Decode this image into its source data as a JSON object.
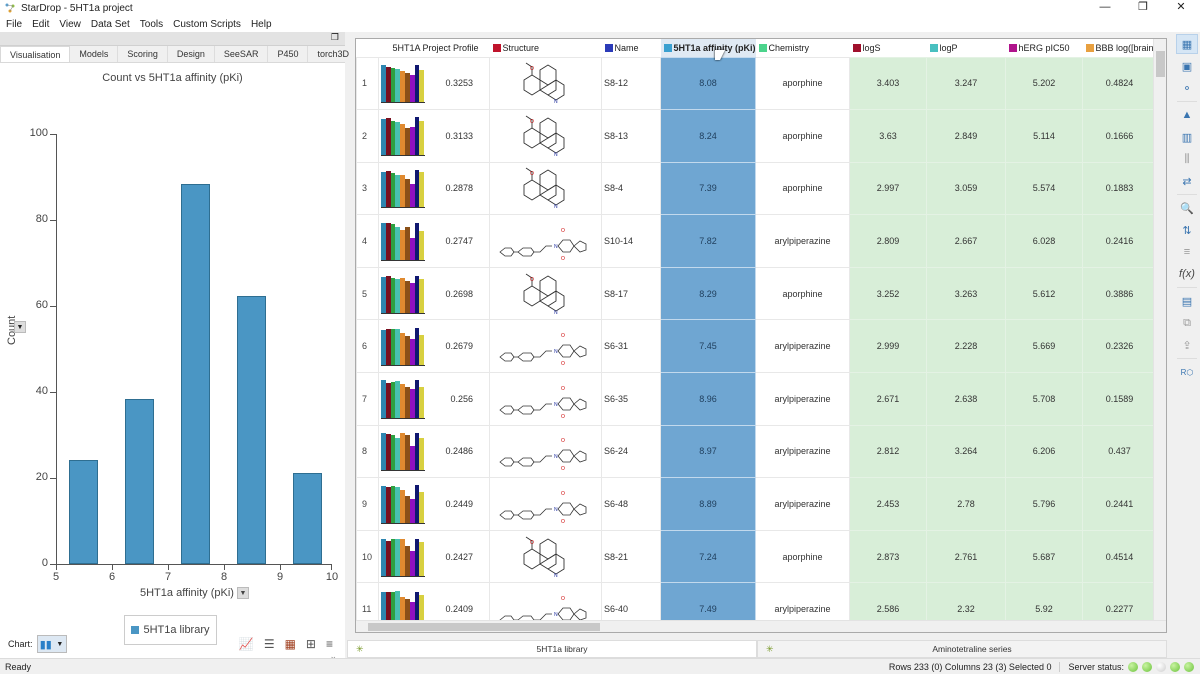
{
  "window": {
    "title": "StarDrop - 5HT1a project",
    "controls": [
      "—",
      "❐",
      "✕"
    ]
  },
  "menu": [
    "File",
    "Edit",
    "View",
    "Data Set",
    "Tools",
    "Custom Scripts",
    "Help"
  ],
  "left_panel": {
    "tabs": [
      "Visualisation",
      "Models",
      "Scoring",
      "Design",
      "SeeSAR",
      "P450",
      "torch3D"
    ],
    "active_tab": "Visualisation",
    "chart_type_label": "Chart:",
    "legend_label": "5HT1a library"
  },
  "chart_data": {
    "type": "bar",
    "title": "Count vs 5HT1a affinity (pKi)",
    "xlabel": "5HT1a affinity (pKi)",
    "ylabel": "Count",
    "categories": [
      "5-6",
      "6-7",
      "7-8",
      "8-9",
      "9-10"
    ],
    "bin_centers": [
      5.5,
      6.5,
      7.5,
      8.5,
      9.5
    ],
    "values": [
      24,
      38,
      88,
      62,
      21
    ],
    "xlim": [
      5,
      10
    ],
    "ylim": [
      0,
      100
    ],
    "xticks": [
      "5",
      "6",
      "7",
      "8",
      "9",
      "10"
    ],
    "yticks": [
      "0",
      "20",
      "40",
      "60",
      "80",
      "100"
    ],
    "legend": [
      "5HT1a library"
    ],
    "bar_color": "#4a96c4",
    "grid": false
  },
  "table": {
    "columns": [
      {
        "label": "5HT1A Project Profile",
        "color": null
      },
      {
        "label": "Structure",
        "color": "#c0142c"
      },
      {
        "label": "Name",
        "color": "#2b3bb8"
      },
      {
        "label": "5HT1a affinity (pKi)",
        "color": "#3aa0d0"
      },
      {
        "label": "Chemistry",
        "color": "#4cd48c"
      },
      {
        "label": "logS",
        "color": "#a0102c"
      },
      {
        "label": "logP",
        "color": "#48c0c0"
      },
      {
        "label": "hERG pIC50",
        "color": "#b0148c"
      },
      {
        "label": "BBB log([brain]",
        "color": "#e8a040"
      }
    ],
    "rows": [
      {
        "n": "1",
        "score": "0.3253",
        "name": "S8-12",
        "aff": "8.08",
        "chem": "aporphine",
        "logS": "3.403",
        "logP": "3.247",
        "herg": "5.202",
        "bbb": "0.4824"
      },
      {
        "n": "2",
        "score": "0.3133",
        "name": "S8-13",
        "aff": "8.24",
        "chem": "aporphine",
        "logS": "3.63",
        "logP": "2.849",
        "herg": "5.114",
        "bbb": "0.1666"
      },
      {
        "n": "3",
        "score": "0.2878",
        "name": "S8-4",
        "aff": "7.39",
        "chem": "aporphine",
        "logS": "2.997",
        "logP": "3.059",
        "herg": "5.574",
        "bbb": "0.1883"
      },
      {
        "n": "4",
        "score": "0.2747",
        "name": "S10-14",
        "aff": "7.82",
        "chem": "arylpiperazine",
        "logS": "2.809",
        "logP": "2.667",
        "herg": "6.028",
        "bbb": "0.2416"
      },
      {
        "n": "5",
        "score": "0.2698",
        "name": "S8-17",
        "aff": "8.29",
        "chem": "aporphine",
        "logS": "3.252",
        "logP": "3.263",
        "herg": "5.612",
        "bbb": "0.3886"
      },
      {
        "n": "6",
        "score": "0.2679",
        "name": "S6-31",
        "aff": "7.45",
        "chem": "arylpiperazine",
        "logS": "2.999",
        "logP": "2.228",
        "herg": "5.669",
        "bbb": "0.2326"
      },
      {
        "n": "7",
        "score": "0.256",
        "name": "S6-35",
        "aff": "8.96",
        "chem": "arylpiperazine",
        "logS": "2.671",
        "logP": "2.638",
        "herg": "5.708",
        "bbb": "0.1589"
      },
      {
        "n": "8",
        "score": "0.2486",
        "name": "S6-24",
        "aff": "8.97",
        "chem": "arylpiperazine",
        "logS": "2.812",
        "logP": "3.264",
        "herg": "6.206",
        "bbb": "0.437"
      },
      {
        "n": "9",
        "score": "0.2449",
        "name": "S6-48",
        "aff": "8.89",
        "chem": "arylpiperazine",
        "logS": "2.453",
        "logP": "2.78",
        "herg": "5.796",
        "bbb": "0.2441"
      },
      {
        "n": "10",
        "score": "0.2427",
        "name": "S8-21",
        "aff": "7.24",
        "chem": "aporphine",
        "logS": "2.873",
        "logP": "2.761",
        "herg": "5.687",
        "bbb": "0.4514"
      },
      {
        "n": "11",
        "score": "0.2409",
        "name": "S6-40",
        "aff": "7.49",
        "chem": "arylpiperazine",
        "logS": "2.586",
        "logP": "2.32",
        "herg": "5.92",
        "bbb": "0.2277"
      }
    ]
  },
  "dataset_tabs": [
    "5HT1a library",
    "Aminotetraline series"
  ],
  "status": {
    "ready": "Ready",
    "info": "Rows 233 (0) Columns 23 (3) Selected 0",
    "server_label": "Server status:",
    "server_dots": [
      "on",
      "on",
      "off",
      "on",
      "on"
    ]
  },
  "profile_colors": [
    "#2e86b0",
    "#7a1020",
    "#2ea040",
    "#48c0b0",
    "#e08a30",
    "#8a5018",
    "#9010c0",
    "#101870",
    "#d8d040"
  ]
}
